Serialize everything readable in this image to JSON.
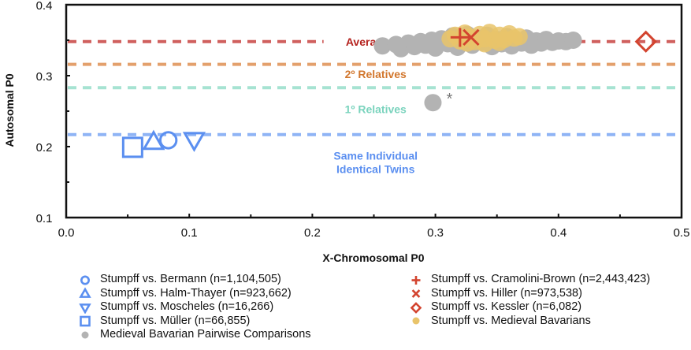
{
  "chart_data": {
    "type": "scatter",
    "title": "",
    "xlabel": "X-Chromosomal P0",
    "ylabel": "Autosomal P0",
    "xlim": [
      0.0,
      0.5
    ],
    "ylim": [
      0.1,
      0.4
    ],
    "xticks": [
      0.0,
      0.1,
      0.2,
      0.3,
      0.4,
      0.5
    ],
    "xtick_labels": [
      "0.0",
      "0.1",
      "0.2",
      "0.3",
      "0.4",
      "0.5"
    ],
    "xminor_ticks": [
      0.05,
      0.15,
      0.25,
      0.35,
      0.45
    ],
    "yticks": [
      0.1,
      0.2,
      0.3,
      0.4
    ],
    "ytick_labels": [
      "0.1",
      "0.2",
      "0.3",
      "0.4"
    ],
    "yminor_ticks": [
      0.15,
      0.25,
      0.35
    ],
    "grid": false,
    "reference_lines": [
      {
        "name": "Average P0",
        "y": 0.348,
        "color": "#d0605e",
        "label_color": "#b5231f",
        "label_x": 0.213,
        "label_y": 0.348
      },
      {
        "name": "2º Relatives",
        "y": 0.316,
        "color": "#e3a06c",
        "label_color": "#d2772e",
        "label_x": 0.213,
        "label_y": 0.302
      },
      {
        "name": "1º Relatives",
        "y": 0.283,
        "color": "#a6e3d2",
        "label_color": "#7ad3bd",
        "label_x": 0.213,
        "label_y": 0.253
      },
      {
        "name": "Same Individual",
        "y": 0.217,
        "color": "#8fb4f5",
        "label_color": "#5b8ff0",
        "label_x": 0.213,
        "label_y": 0.187,
        "label_line2": "Identical Twins"
      }
    ],
    "series": [
      {
        "name": "Stumpff vs. Bermann (n=1,104,505)",
        "marker": "circle",
        "color": "#5b8ff0",
        "points": [
          [
            0.083,
            0.209
          ]
        ]
      },
      {
        "name": "Stumpff vs. Halm-Thayer (n=923,662)",
        "marker": "triangle-up",
        "color": "#5b8ff0",
        "points": [
          [
            0.071,
            0.207
          ]
        ]
      },
      {
        "name": "Stumpff vs. Moscheles (n=16,266)",
        "marker": "triangle-down",
        "color": "#5b8ff0",
        "points": [
          [
            0.104,
            0.209
          ]
        ]
      },
      {
        "name": "Stumpff vs. Müller (n=66,855)",
        "marker": "square",
        "color": "#5b8ff0",
        "points": [
          [
            0.054,
            0.199
          ]
        ]
      },
      {
        "name": "Medieval Bavarian Pairwise Comparisons",
        "marker": "dot",
        "color": "#b3b3b3",
        "points": [
          [
            0.257,
            0.342
          ],
          [
            0.268,
            0.344
          ],
          [
            0.272,
            0.338
          ],
          [
            0.278,
            0.346
          ],
          [
            0.283,
            0.341
          ],
          [
            0.288,
            0.348
          ],
          [
            0.292,
            0.343
          ],
          [
            0.297,
            0.35
          ],
          [
            0.3,
            0.339
          ],
          [
            0.305,
            0.352
          ],
          [
            0.31,
            0.345
          ],
          [
            0.314,
            0.356
          ],
          [
            0.318,
            0.34
          ],
          [
            0.322,
            0.35
          ],
          [
            0.326,
            0.358
          ],
          [
            0.33,
            0.343
          ],
          [
            0.334,
            0.353
          ],
          [
            0.338,
            0.347
          ],
          [
            0.342,
            0.357
          ],
          [
            0.346,
            0.341
          ],
          [
            0.35,
            0.351
          ],
          [
            0.354,
            0.345
          ],
          [
            0.358,
            0.355
          ],
          [
            0.362,
            0.342
          ],
          [
            0.366,
            0.35
          ],
          [
            0.37,
            0.346
          ],
          [
            0.374,
            0.353
          ],
          [
            0.378,
            0.343
          ],
          [
            0.382,
            0.349
          ],
          [
            0.386,
            0.346
          ],
          [
            0.39,
            0.351
          ],
          [
            0.395,
            0.347
          ],
          [
            0.4,
            0.349
          ],
          [
            0.406,
            0.348
          ],
          [
            0.412,
            0.35
          ],
          [
            0.298,
            0.262
          ]
        ]
      },
      {
        "name": "Stumpff vs. Cramolini-Brown (n=2,443,423)",
        "marker": "plus",
        "color": "#d3442f",
        "points": [
          [
            0.32,
            0.354
          ]
        ]
      },
      {
        "name": "Stumpff vs. Hiller (n=973,538)",
        "marker": "x",
        "color": "#d3442f",
        "points": [
          [
            0.329,
            0.354
          ]
        ]
      },
      {
        "name": "Stumpff vs. Kessler (n=6,082)",
        "marker": "diamond",
        "color": "#d3442f",
        "points": [
          [
            0.471,
            0.348
          ]
        ]
      },
      {
        "name": "Stumpff vs. Medieval Bavarians",
        "marker": "dot",
        "color": "#e9c46a",
        "points": [
          [
            0.312,
            0.352
          ],
          [
            0.316,
            0.357
          ],
          [
            0.32,
            0.349
          ],
          [
            0.324,
            0.36
          ],
          [
            0.328,
            0.354
          ],
          [
            0.332,
            0.348
          ],
          [
            0.336,
            0.358
          ],
          [
            0.34,
            0.352
          ],
          [
            0.344,
            0.361
          ],
          [
            0.348,
            0.35
          ],
          [
            0.352,
            0.357
          ],
          [
            0.356,
            0.351
          ],
          [
            0.36,
            0.359
          ],
          [
            0.364,
            0.353
          ],
          [
            0.368,
            0.355
          ],
          [
            0.34,
            0.345
          ],
          [
            0.352,
            0.347
          ],
          [
            0.326,
            0.346
          ]
        ]
      }
    ],
    "annotations": [
      {
        "text": "*",
        "x": 0.309,
        "y": 0.269,
        "color": "#777777"
      }
    ],
    "legend": {
      "placement": "bottom",
      "columns": 2,
      "left": [
        {
          "label": "Stumpff vs. Bermann (n=1,104,505)",
          "marker": "circle",
          "color": "#5b8ff0"
        },
        {
          "label": "Stumpff vs. Halm-Thayer (n=923,662)",
          "marker": "triangle-up",
          "color": "#5b8ff0"
        },
        {
          "label": "Stumpff vs. Moscheles (n=16,266)",
          "marker": "triangle-down",
          "color": "#5b8ff0"
        },
        {
          "label": "Stumpff vs. Müller (n=66,855)",
          "marker": "square",
          "color": "#5b8ff0"
        },
        {
          "label": "Medieval Bavarian Pairwise Comparisons",
          "marker": "dot",
          "color": "#b3b3b3"
        }
      ],
      "right": [
        {
          "label": "Stumpff vs. Cramolini-Brown (n=2,443,423)",
          "marker": "plus",
          "color": "#d3442f"
        },
        {
          "label": "Stumpff vs. Hiller (n=973,538)",
          "marker": "x",
          "color": "#d3442f"
        },
        {
          "label": "Stumpff vs. Kessler (n=6,082)",
          "marker": "diamond",
          "color": "#d3442f"
        },
        {
          "label": "Stumpff vs. Medieval Bavarians",
          "marker": "dot",
          "color": "#e9c46a"
        }
      ]
    }
  }
}
